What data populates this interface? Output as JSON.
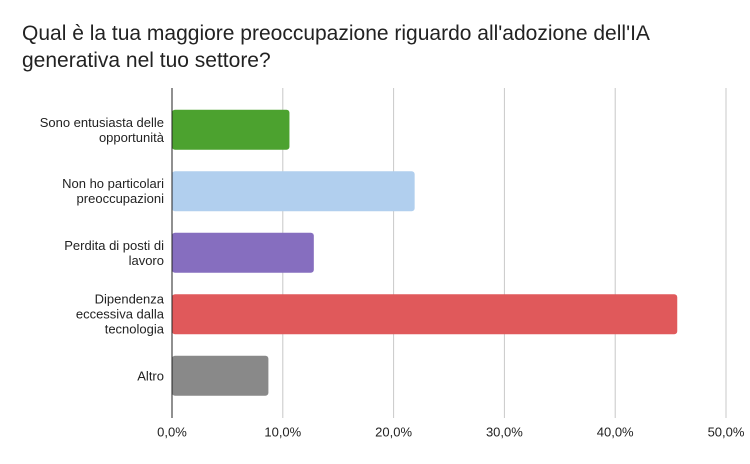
{
  "chart_data": {
    "type": "hbar",
    "title": "Qual è la tua maggiore preoccupazione riguardo all'adozione dell'IA generativa nel tuo settore?",
    "categories": [
      "Sono entusiasta delle opportunità",
      "Non ho particolari preoccupazioni",
      "Perdita di posti di lavoro",
      "Dipendenza eccessiva dalla tecnologia",
      "Altro"
    ],
    "values": [
      10.6,
      21.9,
      12.8,
      45.6,
      8.7
    ],
    "colors": [
      "#4ca22f",
      "#b1cfee",
      "#866ebf",
      "#e0595b",
      "#898989"
    ],
    "xlim": [
      0,
      50
    ],
    "xticks": [
      {
        "value": 0,
        "label": "0,0%"
      },
      {
        "value": 10,
        "label": "10,0%"
      },
      {
        "value": 20,
        "label": "20,0%"
      },
      {
        "value": 30,
        "label": "30,0%"
      },
      {
        "value": 40,
        "label": "40,0%"
      },
      {
        "value": 50,
        "label": "50,0%"
      }
    ],
    "grid": true
  }
}
